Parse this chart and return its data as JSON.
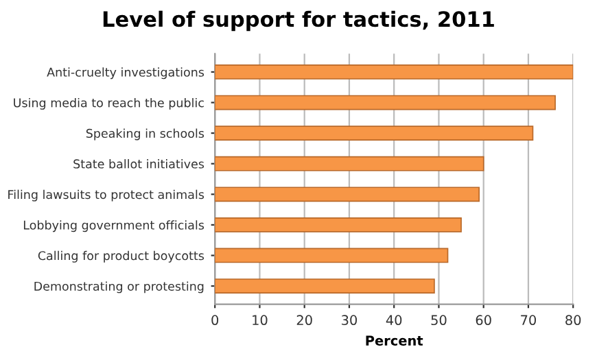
{
  "chart_data": {
    "type": "bar",
    "orientation": "horizontal",
    "title": "Level of support for tactics, 2011",
    "xlabel": "Percent",
    "categories": [
      "Anti-cruelty investigations",
      "Using media to reach the public",
      "Speaking in schools",
      "State ballot initiatives",
      "Filing lawsuits to protect animals",
      "Lobbying government officials",
      "Calling for product boycotts",
      "Demonstrating or protesting"
    ],
    "values": [
      80,
      76,
      71,
      60,
      59,
      55,
      52,
      49
    ],
    "color": "#f79646",
    "xlim": [
      0,
      80
    ],
    "xticks": [
      0,
      10,
      20,
      30,
      40,
      50,
      60,
      70,
      80
    ],
    "grid": "x",
    "legend": false
  }
}
